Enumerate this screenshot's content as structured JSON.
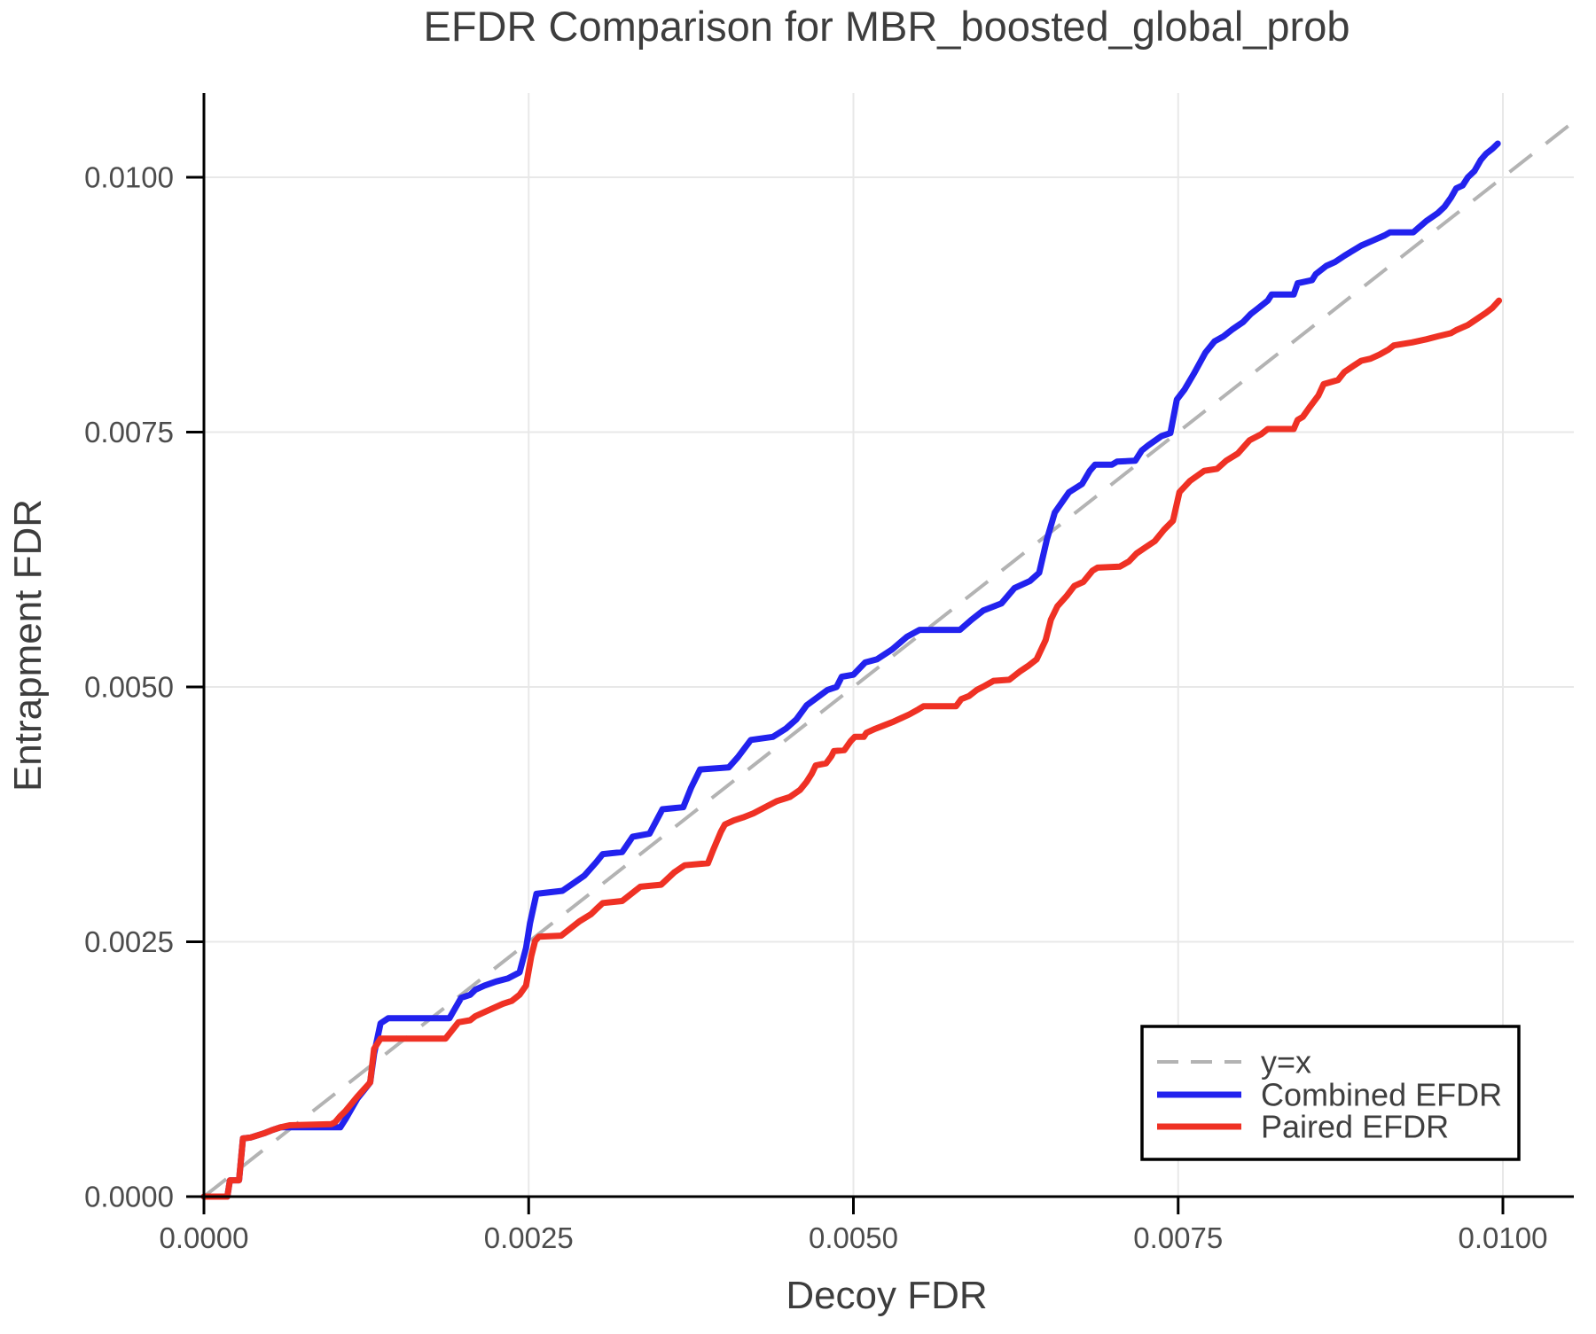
{
  "title": "EFDR Comparison for MBR_boosted_global_prob",
  "chart_data": {
    "type": "line",
    "title": "EFDR Comparison for MBR_boosted_global_prob",
    "xlabel": "Decoy FDR",
    "ylabel": "Entrapment FDR",
    "xlim": [
      0,
      0.010546
    ],
    "ylim": [
      0,
      0.010826
    ],
    "grid": true,
    "x_ticks": [
      {
        "value": 0.0,
        "label": "0.0000"
      },
      {
        "value": 0.0025,
        "label": "0.0025"
      },
      {
        "value": 0.005,
        "label": "0.0050"
      },
      {
        "value": 0.0075,
        "label": "0.0075"
      },
      {
        "value": 0.01,
        "label": "0.0100"
      }
    ],
    "y_ticks": [
      {
        "value": 0.0,
        "label": "0.0000"
      },
      {
        "value": 0.0025,
        "label": "0.0025"
      },
      {
        "value": 0.005,
        "label": "0.0050"
      },
      {
        "value": 0.0075,
        "label": "0.0075"
      },
      {
        "value": 0.01,
        "label": "0.0100"
      }
    ],
    "style": {
      "grid_color": "#e8e8e8",
      "axis_color": "#000000",
      "identity_color": "#b3b3b3",
      "combined_color": "#2222ee",
      "paired_color": "#ef3124"
    },
    "identity_line": {
      "name": "y=x",
      "from": [
        0,
        0
      ],
      "to": [
        0.010546,
        0.010546
      ]
    },
    "legend": {
      "position": "lower right",
      "entries": [
        {
          "label": "y=x",
          "color": "#b3b3b3",
          "dash": true
        },
        {
          "label": "Combined EFDR",
          "color": "#2222ee",
          "dash": false
        },
        {
          "label": "Paired EFDR",
          "color": "#ef3124",
          "dash": false
        }
      ]
    },
    "series": [
      {
        "name": "Combined EFDR",
        "color": "#2222ee",
        "points": [
          [
            0,
            0
          ],
          [
            0.00018,
            0
          ],
          [
            0.0002,
            0.00016
          ],
          [
            0.00027,
            0.00016
          ],
          [
            0.0003,
            0.00057
          ],
          [
            0.00036,
            0.00058
          ],
          [
            0.00046,
            0.00062
          ],
          [
            0.00052,
            0.00065
          ],
          [
            0.00059,
            0.00068
          ],
          [
            0.00067,
            0.00068
          ],
          [
            0.00105,
            0.00068
          ],
          [
            0.00109,
            0.00076
          ],
          [
            0.00118,
            0.00096
          ],
          [
            0.00123,
            0.00104
          ],
          [
            0.00128,
            0.00112
          ],
          [
            0.00131,
            0.0014
          ],
          [
            0.00136,
            0.0017
          ],
          [
            0.00142,
            0.00175
          ],
          [
            0.00189,
            0.00175
          ],
          [
            0.00198,
            0.00195
          ],
          [
            0.00205,
            0.00198
          ],
          [
            0.00209,
            0.00203
          ],
          [
            0.00216,
            0.00207
          ],
          [
            0.00225,
            0.00211
          ],
          [
            0.00234,
            0.00214
          ],
          [
            0.00243,
            0.0022
          ],
          [
            0.00248,
            0.00244
          ],
          [
            0.00251,
            0.00268
          ],
          [
            0.00256,
            0.00297
          ],
          [
            0.00276,
            0.003
          ],
          [
            0.00284,
            0.00307
          ],
          [
            0.00293,
            0.00315
          ],
          [
            0.00302,
            0.00328
          ],
          [
            0.00307,
            0.00336
          ],
          [
            0.00322,
            0.00338
          ],
          [
            0.0033,
            0.00353
          ],
          [
            0.00343,
            0.00356
          ],
          [
            0.00353,
            0.0038
          ],
          [
            0.00369,
            0.00382
          ],
          [
            0.00375,
            0.00401
          ],
          [
            0.00382,
            0.00419
          ],
          [
            0.00404,
            0.00421
          ],
          [
            0.00411,
            0.00431
          ],
          [
            0.00421,
            0.00448
          ],
          [
            0.00438,
            0.00451
          ],
          [
            0.00448,
            0.00459
          ],
          [
            0.00456,
            0.00468
          ],
          [
            0.00464,
            0.00482
          ],
          [
            0.0048,
            0.00497
          ],
          [
            0.00487,
            0.005
          ],
          [
            0.00491,
            0.0051
          ],
          [
            0.005,
            0.00512
          ],
          [
            0.00509,
            0.00524
          ],
          [
            0.00518,
            0.00527
          ],
          [
            0.0053,
            0.00537
          ],
          [
            0.00541,
            0.00549
          ],
          [
            0.00551,
            0.00556
          ],
          [
            0.00582,
            0.00556
          ],
          [
            0.00591,
            0.00566
          ],
          [
            0.006,
            0.00575
          ],
          [
            0.00614,
            0.00582
          ],
          [
            0.00624,
            0.00597
          ],
          [
            0.00636,
            0.00604
          ],
          [
            0.00643,
            0.00612
          ],
          [
            0.00649,
            0.00645
          ],
          [
            0.00655,
            0.00671
          ],
          [
            0.00666,
            0.00691
          ],
          [
            0.00676,
            0.00699
          ],
          [
            0.00682,
            0.00712
          ],
          [
            0.00686,
            0.00718
          ],
          [
            0.00699,
            0.00718
          ],
          [
            0.00703,
            0.00721
          ],
          [
            0.00717,
            0.00722
          ],
          [
            0.00722,
            0.00732
          ],
          [
            0.00727,
            0.00737
          ],
          [
            0.00737,
            0.00746
          ],
          [
            0.00744,
            0.00749
          ],
          [
            0.00749,
            0.00782
          ],
          [
            0.00755,
            0.00792
          ],
          [
            0.00762,
            0.00807
          ],
          [
            0.00771,
            0.00828
          ],
          [
            0.00778,
            0.00839
          ],
          [
            0.00785,
            0.00844
          ],
          [
            0.00792,
            0.00851
          ],
          [
            0.008,
            0.00858
          ],
          [
            0.00806,
            0.00866
          ],
          [
            0.00812,
            0.00872
          ],
          [
            0.00819,
            0.00879
          ],
          [
            0.00822,
            0.00885
          ],
          [
            0.00839,
            0.00885
          ],
          [
            0.00842,
            0.00896
          ],
          [
            0.00853,
            0.00899
          ],
          [
            0.00856,
            0.00905
          ],
          [
            0.00864,
            0.00913
          ],
          [
            0.00871,
            0.00917
          ],
          [
            0.00878,
            0.00923
          ],
          [
            0.00891,
            0.00933
          ],
          [
            0.009,
            0.00938
          ],
          [
            0.00909,
            0.00943
          ],
          [
            0.00913,
            0.00946
          ],
          [
            0.00931,
            0.00946
          ],
          [
            0.00941,
            0.00957
          ],
          [
            0.0095,
            0.00965
          ],
          [
            0.00955,
            0.00971
          ],
          [
            0.0096,
            0.0098
          ],
          [
            0.00964,
            0.00989
          ],
          [
            0.00969,
            0.00992
          ],
          [
            0.00973,
            0.01
          ],
          [
            0.00978,
            0.01006
          ],
          [
            0.00983,
            0.01017
          ],
          [
            0.00987,
            0.01023
          ],
          [
            0.00992,
            0.01028
          ],
          [
            0.00996,
            0.01033
          ]
        ]
      },
      {
        "name": "Paired EFDR",
        "color": "#ef3124",
        "points": [
          [
            0,
            0
          ],
          [
            0.00018,
            0
          ],
          [
            0.0002,
            0.00016
          ],
          [
            0.00027,
            0.00016
          ],
          [
            0.0003,
            0.00057
          ],
          [
            0.00036,
            0.00058
          ],
          [
            0.00046,
            0.00062
          ],
          [
            0.00052,
            0.00065
          ],
          [
            0.00059,
            0.00068
          ],
          [
            0.00066,
            0.0007
          ],
          [
            0.00098,
            0.00071
          ],
          [
            0.00101,
            0.00073
          ],
          [
            0.00105,
            0.00079
          ],
          [
            0.00109,
            0.00084
          ],
          [
            0.00118,
            0.00098
          ],
          [
            0.00123,
            0.00105
          ],
          [
            0.00128,
            0.00112
          ],
          [
            0.00131,
            0.00145
          ],
          [
            0.00136,
            0.00155
          ],
          [
            0.00186,
            0.00155
          ],
          [
            0.00196,
            0.00171
          ],
          [
            0.00205,
            0.00173
          ],
          [
            0.00209,
            0.00177
          ],
          [
            0.00216,
            0.00181
          ],
          [
            0.00223,
            0.00185
          ],
          [
            0.0023,
            0.00189
          ],
          [
            0.00237,
            0.00192
          ],
          [
            0.00243,
            0.00198
          ],
          [
            0.00248,
            0.00207
          ],
          [
            0.00252,
            0.00236
          ],
          [
            0.00255,
            0.00251
          ],
          [
            0.00258,
            0.00255
          ],
          [
            0.00275,
            0.00256
          ],
          [
            0.00281,
            0.00262
          ],
          [
            0.00289,
            0.0027
          ],
          [
            0.00298,
            0.00277
          ],
          [
            0.00302,
            0.00282
          ],
          [
            0.00307,
            0.00288
          ],
          [
            0.00322,
            0.0029
          ],
          [
            0.00336,
            0.00304
          ],
          [
            0.00352,
            0.00306
          ],
          [
            0.00362,
            0.00318
          ],
          [
            0.0037,
            0.00325
          ],
          [
            0.00388,
            0.00327
          ],
          [
            0.00392,
            0.0034
          ],
          [
            0.00398,
            0.00358
          ],
          [
            0.00401,
            0.00365
          ],
          [
            0.00408,
            0.00369
          ],
          [
            0.00415,
            0.00372
          ],
          [
            0.00423,
            0.00376
          ],
          [
            0.00432,
            0.00382
          ],
          [
            0.00441,
            0.00388
          ],
          [
            0.00451,
            0.00392
          ],
          [
            0.00459,
            0.00399
          ],
          [
            0.00464,
            0.00407
          ],
          [
            0.00468,
            0.00415
          ],
          [
            0.00471,
            0.00423
          ],
          [
            0.00479,
            0.00425
          ],
          [
            0.00483,
            0.00432
          ],
          [
            0.00485,
            0.00437
          ],
          [
            0.00493,
            0.00438
          ],
          [
            0.00498,
            0.00447
          ],
          [
            0.00501,
            0.00451
          ],
          [
            0.00508,
            0.00451
          ],
          [
            0.0051,
            0.00455
          ],
          [
            0.00517,
            0.00459
          ],
          [
            0.00523,
            0.00462
          ],
          [
            0.00531,
            0.00466
          ],
          [
            0.00543,
            0.00473
          ],
          [
            0.0055,
            0.00478
          ],
          [
            0.00554,
            0.00481
          ],
          [
            0.00579,
            0.00481
          ],
          [
            0.00583,
            0.00488
          ],
          [
            0.00589,
            0.00491
          ],
          [
            0.00595,
            0.00497
          ],
          [
            0.00601,
            0.00501
          ],
          [
            0.00608,
            0.00506
          ],
          [
            0.0062,
            0.00507
          ],
          [
            0.00628,
            0.00515
          ],
          [
            0.00635,
            0.00521
          ],
          [
            0.00641,
            0.00527
          ],
          [
            0.00648,
            0.00546
          ],
          [
            0.00652,
            0.00566
          ],
          [
            0.00657,
            0.00579
          ],
          [
            0.00664,
            0.00589
          ],
          [
            0.0067,
            0.00599
          ],
          [
            0.00677,
            0.00603
          ],
          [
            0.00684,
            0.00614
          ],
          [
            0.00688,
            0.00617
          ],
          [
            0.00705,
            0.00618
          ],
          [
            0.00712,
            0.00623
          ],
          [
            0.00718,
            0.00631
          ],
          [
            0.00725,
            0.00637
          ],
          [
            0.00732,
            0.00643
          ],
          [
            0.00739,
            0.00654
          ],
          [
            0.00746,
            0.00663
          ],
          [
            0.00751,
            0.00691
          ],
          [
            0.00759,
            0.00702
          ],
          [
            0.0077,
            0.00712
          ],
          [
            0.0078,
            0.00714
          ],
          [
            0.00787,
            0.00722
          ],
          [
            0.00796,
            0.00729
          ],
          [
            0.00805,
            0.00742
          ],
          [
            0.00814,
            0.00748
          ],
          [
            0.00819,
            0.00753
          ],
          [
            0.00839,
            0.00753
          ],
          [
            0.00842,
            0.00762
          ],
          [
            0.00846,
            0.00765
          ],
          [
            0.00851,
            0.00774
          ],
          [
            0.00858,
            0.00786
          ],
          [
            0.00862,
            0.00797
          ],
          [
            0.00873,
            0.00801
          ],
          [
            0.00878,
            0.00809
          ],
          [
            0.00885,
            0.00815
          ],
          [
            0.00891,
            0.0082
          ],
          [
            0.00898,
            0.00822
          ],
          [
            0.00905,
            0.00826
          ],
          [
            0.00912,
            0.00831
          ],
          [
            0.00916,
            0.00835
          ],
          [
            0.0093,
            0.00838
          ],
          [
            0.00941,
            0.00841
          ],
          [
            0.0095,
            0.00844
          ],
          [
            0.0096,
            0.00847
          ],
          [
            0.00964,
            0.0085
          ],
          [
            0.00973,
            0.00855
          ],
          [
            0.0098,
            0.00861
          ],
          [
            0.00987,
            0.00867
          ],
          [
            0.00992,
            0.00872
          ],
          [
            0.00997,
            0.00879
          ]
        ]
      }
    ]
  }
}
